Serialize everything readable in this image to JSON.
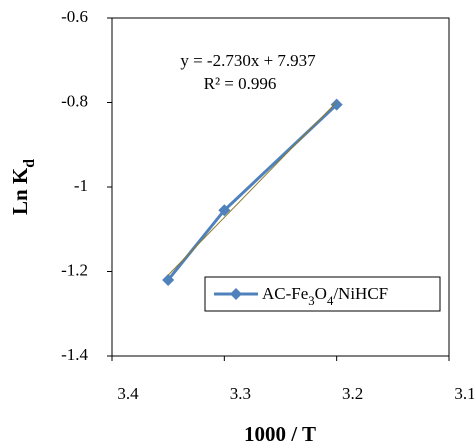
{
  "chart_data": {
    "type": "line",
    "x_label": "1000 / T",
    "y_label": "Ln Kd",
    "x": [
      3.35,
      3.3,
      3.2
    ],
    "series": [
      {
        "name": "AC-Fe3O4/NiHCF",
        "color": "#4f81bd",
        "values": [
          -1.22,
          -1.055,
          -0.805
        ]
      }
    ],
    "trendline": {
      "slope": -2.73,
      "intercept": 7.937,
      "color": "#8a7a2a"
    },
    "annotations": [
      "y = -2.730x + 7.937",
      "R² = 0.996"
    ],
    "xlim": [
      3.4,
      3.1
    ],
    "xticks": [
      3.4,
      3.3,
      3.2,
      3.1
    ],
    "ylim": [
      -0.6,
      -1.4
    ],
    "yticks": [
      -0.6,
      -0.8,
      -1,
      -1.2,
      -1.4
    ]
  }
}
